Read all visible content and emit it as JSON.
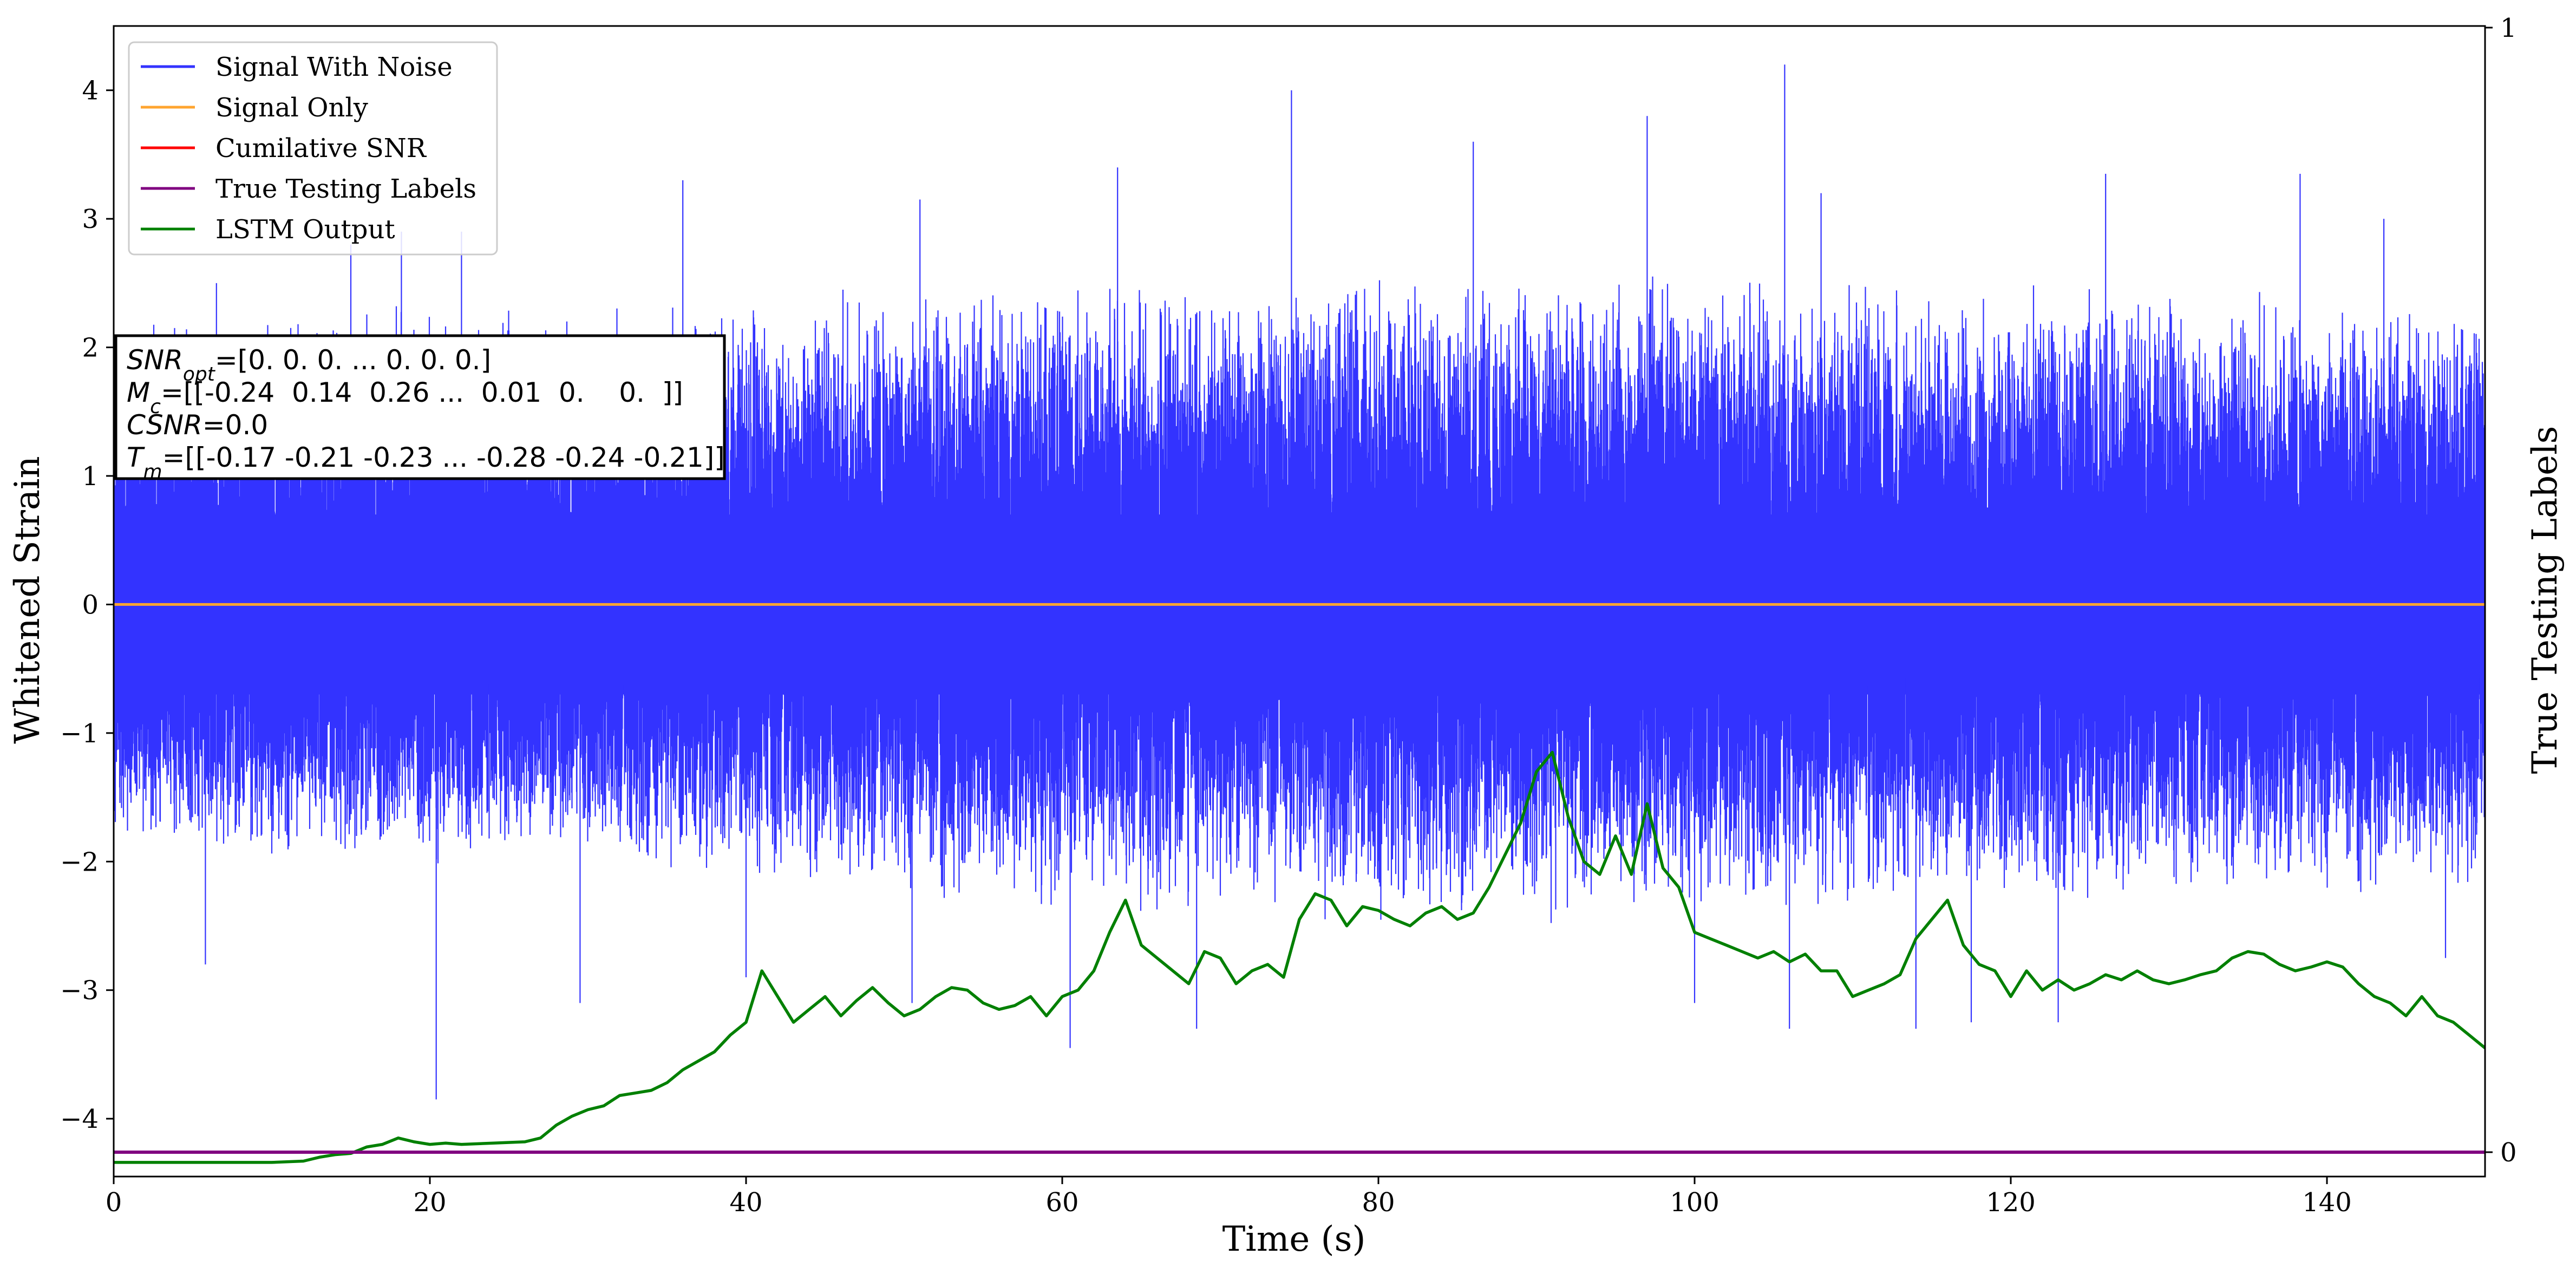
{
  "chart_data": {
    "type": "line",
    "title": "",
    "xlabel": "Time (s)",
    "ylabel": "Whitened Strain",
    "y2label": "True Testing Labels",
    "xlim": [
      0,
      150
    ],
    "ylim": [
      -4.45,
      4.5
    ],
    "y2lim": [
      0,
      1
    ],
    "x_ticks": [
      0,
      20,
      40,
      60,
      80,
      100,
      120,
      140
    ],
    "y_ticks": [
      -4,
      -3,
      -2,
      -1,
      0,
      1,
      2,
      3,
      4
    ],
    "y2_ticks": [
      0,
      1
    ],
    "grid": false,
    "legend_position": "top-left",
    "legend": [
      "Signal With Noise",
      "Signal Only",
      "Cumilative SNR",
      "True Testing Labels",
      "LSTM Output"
    ],
    "series": [
      {
        "name": "Signal With Noise",
        "color": "#3333ff",
        "axis": "left",
        "note_text": "",
        "envelope": {
          "x": [
            0,
            10,
            20,
            30,
            40,
            50,
            60,
            70,
            80,
            90,
            100,
            110,
            120,
            130,
            140,
            150
          ],
          "upper_typical": [
            2.2,
            2.3,
            2.4,
            2.3,
            2.4,
            2.5,
            2.5,
            2.6,
            2.6,
            2.6,
            2.6,
            2.5,
            2.5,
            2.5,
            2.4,
            2.3
          ],
          "lower_typical": [
            -1.9,
            -2.0,
            -2.1,
            -2.0,
            -2.2,
            -2.3,
            -2.4,
            -2.4,
            -2.5,
            -2.5,
            -2.4,
            -2.4,
            -2.4,
            -2.3,
            -2.3,
            -2.2
          ]
        },
        "spikes": [
          {
            "x": 6.5,
            "y": 2.5
          },
          {
            "x": 15,
            "y": 2.8
          },
          {
            "x": 18.2,
            "y": 2.9
          },
          {
            "x": 22,
            "y": 2.9
          },
          {
            "x": 36,
            "y": 3.3
          },
          {
            "x": 51,
            "y": 3.15
          },
          {
            "x": 63.5,
            "y": 3.4
          },
          {
            "x": 74.5,
            "y": 4.0
          },
          {
            "x": 86,
            "y": 3.6
          },
          {
            "x": 97,
            "y": 3.8
          },
          {
            "x": 105.7,
            "y": 4.2
          },
          {
            "x": 108,
            "y": 3.2
          },
          {
            "x": 126,
            "y": 3.35
          },
          {
            "x": 138.3,
            "y": 3.35
          },
          {
            "x": 143.6,
            "y": 3.0
          },
          {
            "x": 5.8,
            "y": -2.8
          },
          {
            "x": 20.4,
            "y": -3.85
          },
          {
            "x": 29.5,
            "y": -3.1
          },
          {
            "x": 40,
            "y": -2.9
          },
          {
            "x": 50.5,
            "y": -3.1
          },
          {
            "x": 60.5,
            "y": -3.45
          },
          {
            "x": 68.5,
            "y": -3.3
          },
          {
            "x": 100,
            "y": -3.1
          },
          {
            "x": 106,
            "y": -3.3
          },
          {
            "x": 114,
            "y": -3.3
          },
          {
            "x": 117.5,
            "y": -3.25
          },
          {
            "x": 123,
            "y": -3.25
          },
          {
            "x": 147.5,
            "y": -2.75
          }
        ]
      },
      {
        "name": "Signal Only",
        "color": "#ffa530",
        "axis": "left",
        "x": [
          0,
          150
        ],
        "y": [
          0,
          0
        ]
      },
      {
        "name": "Cumilative SNR",
        "color": "#ff0000",
        "axis": "right",
        "x": [
          0,
          150
        ],
        "y": [
          0,
          0
        ]
      },
      {
        "name": "True Testing Labels",
        "color": "#800080",
        "axis": "right",
        "x": [
          0,
          150
        ],
        "y": [
          0,
          0
        ]
      },
      {
        "name": "LSTM Output",
        "color": "#008000",
        "axis": "left",
        "x": [
          0,
          10,
          12,
          13,
          14,
          15,
          16,
          17,
          18,
          19,
          20,
          21,
          22,
          24,
          26,
          27,
          28,
          29,
          30,
          31,
          32,
          33,
          34,
          35,
          36,
          37,
          38,
          39,
          40,
          41,
          42,
          43,
          44,
          45,
          46,
          47,
          48,
          49,
          50,
          51,
          52,
          53,
          54,
          55,
          56,
          57,
          58,
          59,
          60,
          61,
          62,
          63,
          64,
          65,
          66,
          67,
          68,
          69,
          70,
          71,
          72,
          73,
          74,
          75,
          76,
          77,
          78,
          79,
          80,
          81,
          82,
          83,
          84,
          85,
          86,
          87,
          88,
          89,
          90,
          91,
          92,
          93,
          94,
          95,
          96,
          97,
          98,
          99,
          100,
          101,
          102,
          103,
          104,
          105,
          106,
          107,
          108,
          109,
          110,
          111,
          112,
          113,
          114,
          115,
          116,
          117,
          118,
          119,
          120,
          121,
          122,
          123,
          124,
          125,
          126,
          127,
          128,
          129,
          130,
          131,
          132,
          133,
          134,
          135,
          136,
          137,
          138,
          139,
          140,
          141,
          142,
          143,
          144,
          145,
          146,
          147,
          148,
          149,
          150
        ],
        "y": [
          -4.34,
          -4.34,
          -4.33,
          -4.3,
          -4.28,
          -4.27,
          -4.22,
          -4.2,
          -4.15,
          -4.18,
          -4.2,
          -4.19,
          -4.2,
          -4.19,
          -4.18,
          -4.15,
          -4.05,
          -3.98,
          -3.93,
          -3.9,
          -3.82,
          -3.8,
          -3.78,
          -3.72,
          -3.62,
          -3.55,
          -3.48,
          -3.35,
          -3.25,
          -2.85,
          -3.05,
          -3.25,
          -3.15,
          -3.05,
          -3.2,
          -3.08,
          -2.98,
          -3.1,
          -3.2,
          -3.15,
          -3.05,
          -2.98,
          -3.0,
          -3.1,
          -3.15,
          -3.12,
          -3.05,
          -3.2,
          -3.05,
          -3.0,
          -2.85,
          -2.55,
          -2.3,
          -2.65,
          -2.75,
          -2.85,
          -2.95,
          -2.7,
          -2.75,
          -2.95,
          -2.85,
          -2.8,
          -2.9,
          -2.45,
          -2.25,
          -2.3,
          -2.5,
          -2.35,
          -2.38,
          -2.45,
          -2.5,
          -2.4,
          -2.35,
          -2.45,
          -2.4,
          -2.2,
          -1.95,
          -1.7,
          -1.3,
          -1.15,
          -1.65,
          -2.0,
          -2.1,
          -1.8,
          -2.1,
          -1.55,
          -2.05,
          -2.2,
          -2.55,
          -2.6,
          -2.65,
          -2.7,
          -2.75,
          -2.7,
          -2.78,
          -2.72,
          -2.85,
          -2.85,
          -3.05,
          -3.0,
          -2.95,
          -2.88,
          -2.6,
          -2.45,
          -2.3,
          -2.65,
          -2.8,
          -2.85,
          -3.05,
          -2.85,
          -3.0,
          -2.92,
          -3.0,
          -2.95,
          -2.88,
          -2.92,
          -2.85,
          -2.92,
          -2.95,
          -2.92,
          -2.88,
          -2.85,
          -2.75,
          -2.7,
          -2.72,
          -2.8,
          -2.85,
          -2.82,
          -2.78,
          -2.82,
          -2.95,
          -3.05,
          -3.1,
          -3.2,
          -3.05,
          -3.2,
          -3.25,
          -3.35,
          -3.45
        ]
      }
    ],
    "annotation": {
      "lines": [
        {
          "var": "SNR",
          "sub": "opt",
          "value": "=[0. 0. 0. ... 0. 0. 0.]"
        },
        {
          "var": "M",
          "sub": "c",
          "value": "=[[-0.24  0.14  0.26 ...  0.01  0.    0.  ]]"
        },
        {
          "var": "CSNR",
          "sub": "",
          "value": "=0.0"
        },
        {
          "var": "T",
          "sub": "m",
          "value": "=[[-0.17 -0.21 -0.23 ... -0.28 -0.24 -0.21]]"
        }
      ]
    }
  }
}
